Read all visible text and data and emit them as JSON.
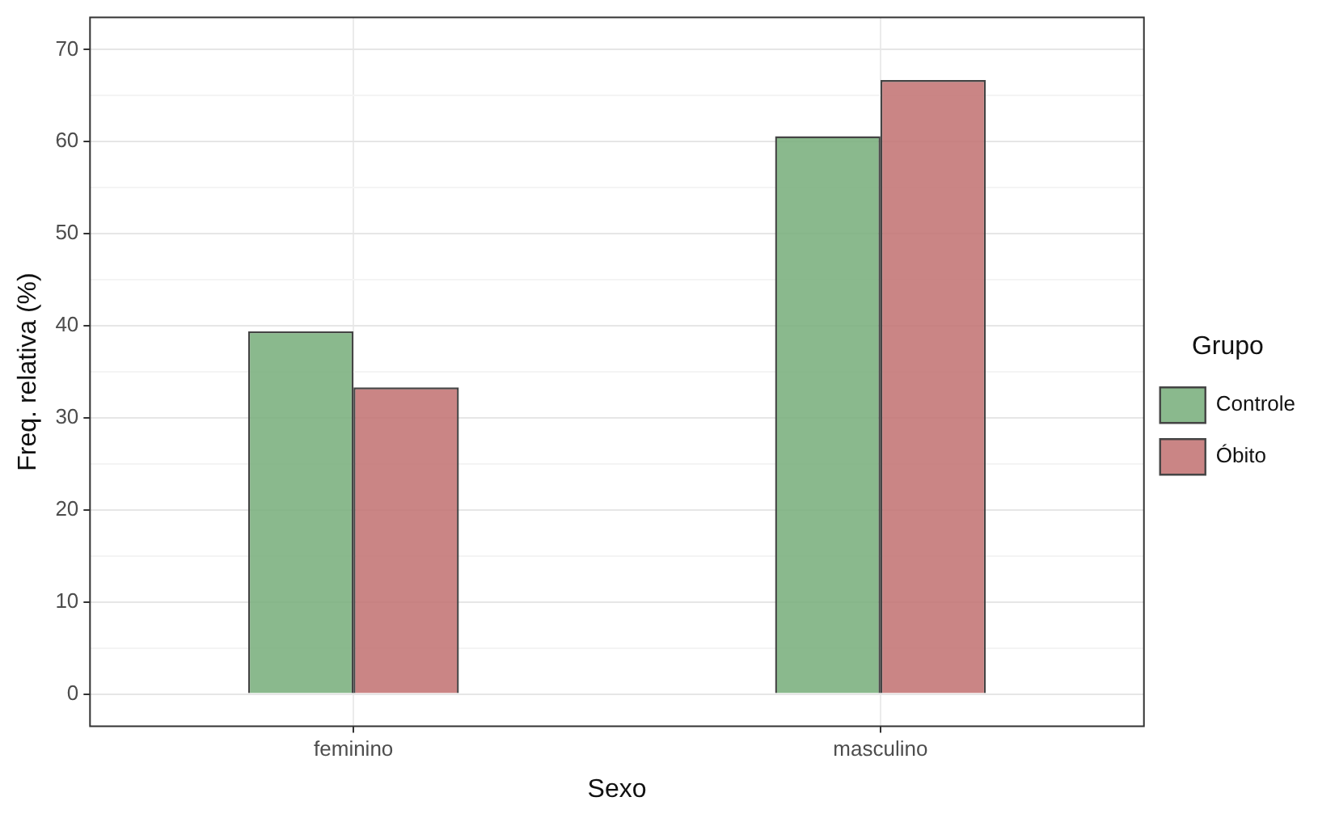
{
  "chart_data": {
    "type": "bar",
    "xlabel": "Sexo",
    "ylabel": "Freq. relativa (%)",
    "legend_title": "Grupo",
    "categories": [
      "feminino",
      "masculino"
    ],
    "series": [
      {
        "name": "Controle",
        "color": "#78ae7c",
        "values": [
          39.4,
          60.6
        ]
      },
      {
        "name": "Óbito",
        "color": "#c27272",
        "values": [
          33.3,
          66.7
        ]
      }
    ],
    "ylim": [
      -3.5,
      73.5
    ],
    "yticks": [
      0,
      {
        "value": 5,
        "label": null
      },
      10,
      {
        "value": 15,
        "label": null
      },
      20,
      {
        "value": 25,
        "label": null
      },
      30,
      {
        "value": 35,
        "label": null
      },
      40,
      {
        "value": 45,
        "label": null
      },
      50,
      {
        "value": 55,
        "label": null
      },
      60,
      {
        "value": 65,
        "label": null
      },
      70
    ],
    "grid": true,
    "legend": "right"
  }
}
